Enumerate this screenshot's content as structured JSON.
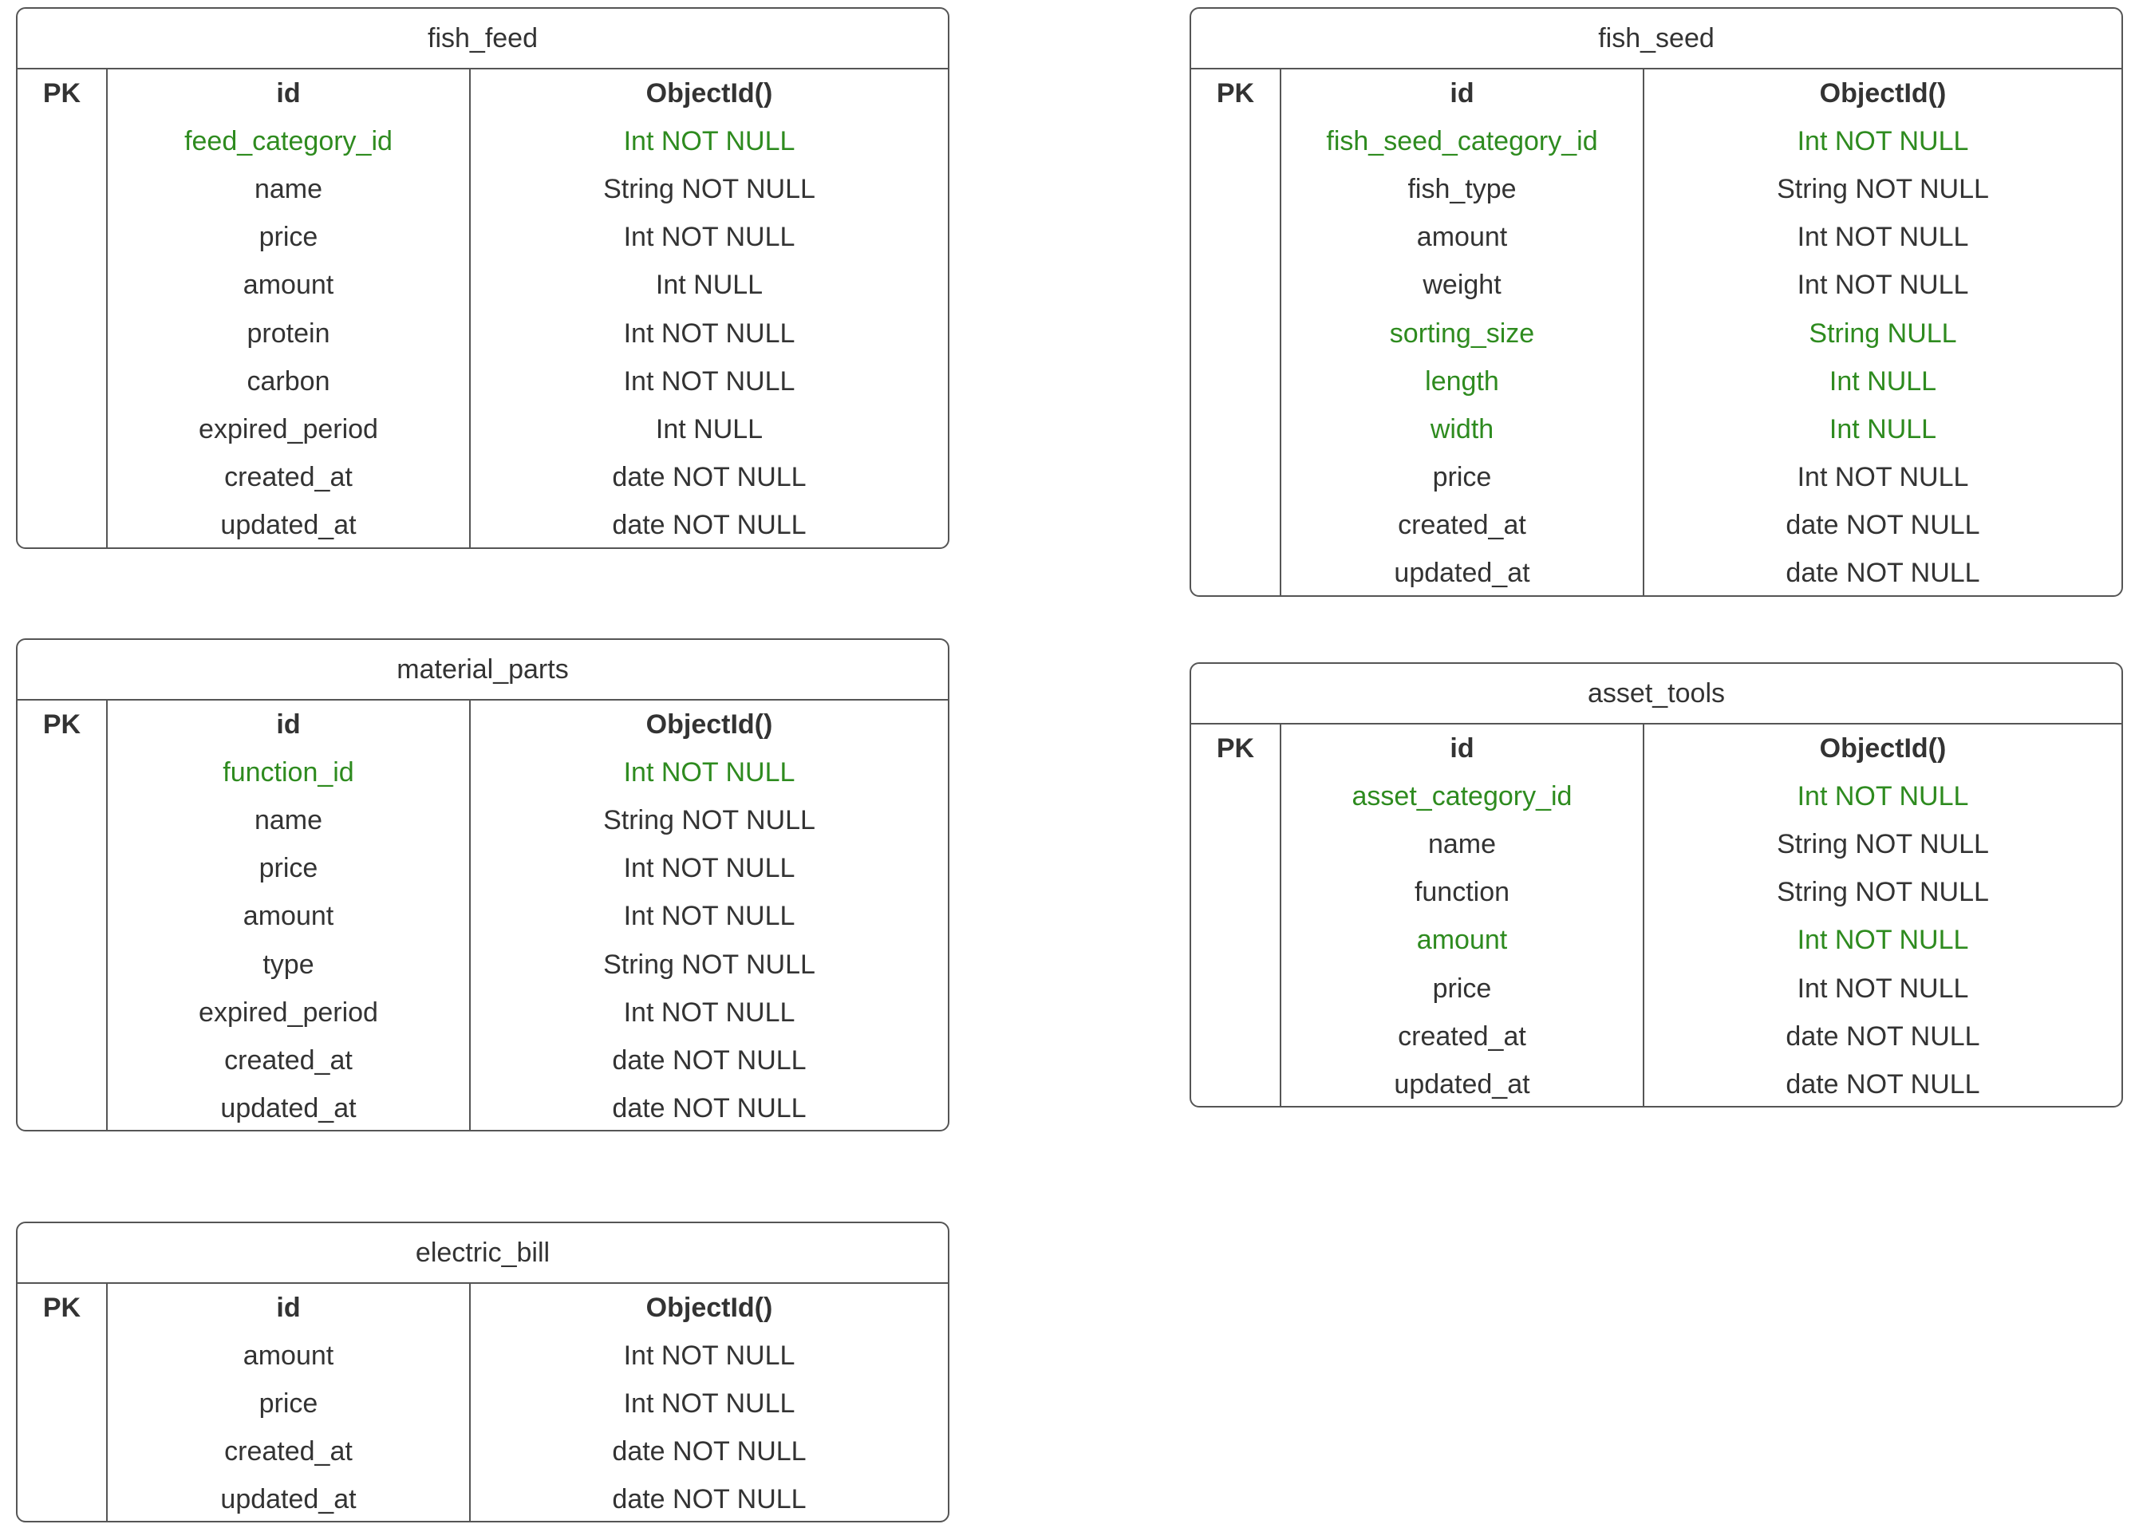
{
  "colors": {
    "border": "#555555",
    "text": "#333333",
    "foreign_key": "#2e8b1f",
    "background": "#ffffff"
  },
  "tables": [
    {
      "id": "fish_feed",
      "name": "fish_feed",
      "pk_label": "PK",
      "columns": [
        {
          "name": "id",
          "type": "ObjectId()",
          "primary": true,
          "fk": false
        },
        {
          "name": "feed_category_id",
          "type": "Int NOT NULL",
          "primary": false,
          "fk": true
        },
        {
          "name": "name",
          "type": "String NOT NULL",
          "primary": false,
          "fk": false
        },
        {
          "name": "price",
          "type": "Int NOT NULL",
          "primary": false,
          "fk": false
        },
        {
          "name": "amount",
          "type": "Int NULL",
          "primary": false,
          "fk": false
        },
        {
          "name": "protein",
          "type": "Int NOT NULL",
          "primary": false,
          "fk": false
        },
        {
          "name": "carbon",
          "type": "Int NOT NULL",
          "primary": false,
          "fk": false
        },
        {
          "name": "expired_period",
          "type": "Int NULL",
          "primary": false,
          "fk": false
        },
        {
          "name": "created_at",
          "type": "date NOT NULL",
          "primary": false,
          "fk": false
        },
        {
          "name": "updated_at",
          "type": "date NOT NULL",
          "primary": false,
          "fk": false
        }
      ]
    },
    {
      "id": "fish_seed",
      "name": "fish_seed",
      "pk_label": "PK",
      "columns": [
        {
          "name": "id",
          "type": "ObjectId()",
          "primary": true,
          "fk": false
        },
        {
          "name": "fish_seed_category_id",
          "type": "Int NOT NULL",
          "primary": false,
          "fk": true
        },
        {
          "name": "fish_type",
          "type": "String NOT NULL",
          "primary": false,
          "fk": false
        },
        {
          "name": "amount",
          "type": "Int NOT NULL",
          "primary": false,
          "fk": false
        },
        {
          "name": "weight",
          "type": "Int NOT NULL",
          "primary": false,
          "fk": false
        },
        {
          "name": "sorting_size",
          "type": "String NULL",
          "primary": false,
          "fk": true
        },
        {
          "name": "length",
          "type": "Int NULL",
          "primary": false,
          "fk": true
        },
        {
          "name": "width",
          "type": "Int NULL",
          "primary": false,
          "fk": true
        },
        {
          "name": "price",
          "type": "Int NOT NULL",
          "primary": false,
          "fk": false
        },
        {
          "name": "created_at",
          "type": "date NOT NULL",
          "primary": false,
          "fk": false
        },
        {
          "name": "updated_at",
          "type": "date NOT NULL",
          "primary": false,
          "fk": false
        }
      ]
    },
    {
      "id": "material_parts",
      "name": "material_parts",
      "pk_label": "PK",
      "columns": [
        {
          "name": "id",
          "type": "ObjectId()",
          "primary": true,
          "fk": false
        },
        {
          "name": "function_id",
          "type": "Int NOT NULL",
          "primary": false,
          "fk": true
        },
        {
          "name": "name",
          "type": "String NOT NULL",
          "primary": false,
          "fk": false
        },
        {
          "name": "price",
          "type": "Int NOT NULL",
          "primary": false,
          "fk": false
        },
        {
          "name": "amount",
          "type": "Int NOT NULL",
          "primary": false,
          "fk": false
        },
        {
          "name": "type",
          "type": "String NOT NULL",
          "primary": false,
          "fk": false
        },
        {
          "name": "expired_period",
          "type": "Int NOT NULL",
          "primary": false,
          "fk": false
        },
        {
          "name": "created_at",
          "type": "date NOT NULL",
          "primary": false,
          "fk": false
        },
        {
          "name": "updated_at",
          "type": "date NOT NULL",
          "primary": false,
          "fk": false
        }
      ]
    },
    {
      "id": "asset_tools",
      "name": "asset_tools",
      "pk_label": "PK",
      "columns": [
        {
          "name": "id",
          "type": "ObjectId()",
          "primary": true,
          "fk": false
        },
        {
          "name": "asset_category_id",
          "type": "Int NOT NULL",
          "primary": false,
          "fk": true
        },
        {
          "name": "name",
          "type": "String NOT NULL",
          "primary": false,
          "fk": false
        },
        {
          "name": "function",
          "type": "String NOT NULL",
          "primary": false,
          "fk": false
        },
        {
          "name": "amount",
          "type": "Int NOT NULL",
          "primary": false,
          "fk": true
        },
        {
          "name": "price",
          "type": "Int NOT NULL",
          "primary": false,
          "fk": false
        },
        {
          "name": "created_at",
          "type": "date NOT NULL",
          "primary": false,
          "fk": false
        },
        {
          "name": "updated_at",
          "type": "date NOT NULL",
          "primary": false,
          "fk": false
        }
      ]
    },
    {
      "id": "electric_bill",
      "name": "electric_bill",
      "pk_label": "PK",
      "columns": [
        {
          "name": "id",
          "type": "ObjectId()",
          "primary": true,
          "fk": false
        },
        {
          "name": "amount",
          "type": "Int NOT NULL",
          "primary": false,
          "fk": false
        },
        {
          "name": "price",
          "type": "Int NOT NULL",
          "primary": false,
          "fk": false
        },
        {
          "name": "created_at",
          "type": "date NOT NULL",
          "primary": false,
          "fk": false
        },
        {
          "name": "updated_at",
          "type": "date NOT NULL",
          "primary": false,
          "fk": false
        }
      ]
    }
  ]
}
